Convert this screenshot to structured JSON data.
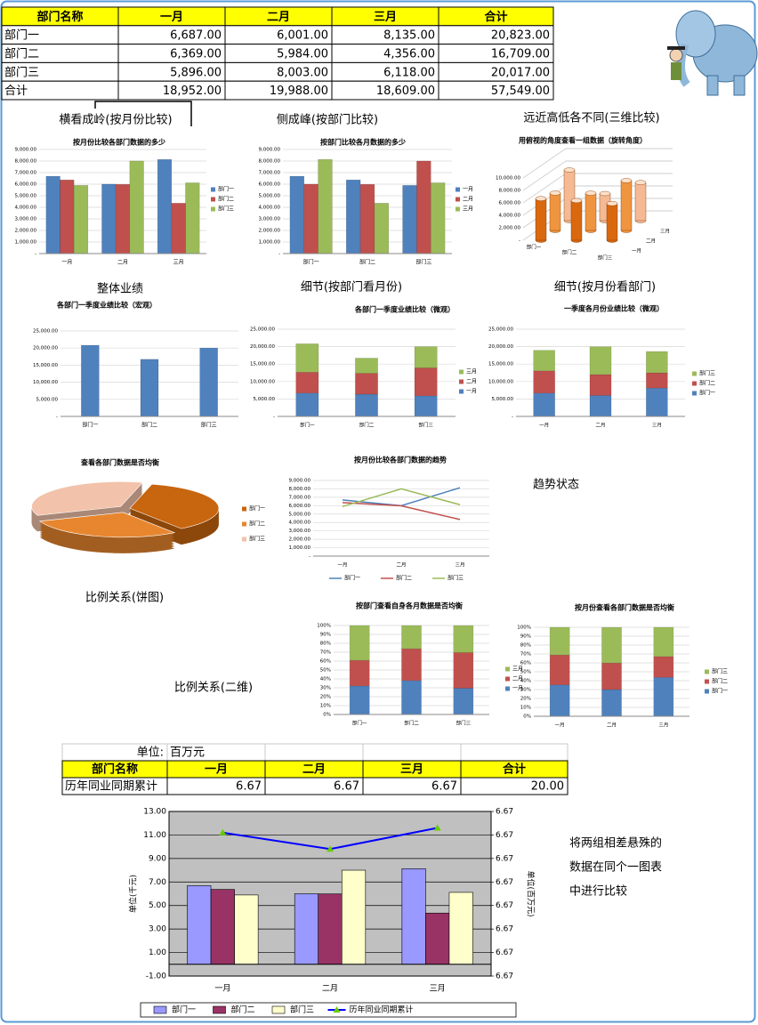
{
  "table": {
    "header": [
      "部门名称",
      "一月",
      "二月",
      "三月",
      "合计"
    ],
    "rows": [
      [
        "部门一",
        "6,687.00",
        "6,001.00",
        "8,135.00",
        "20,823.00"
      ],
      [
        "部门二",
        "6,369.00",
        "5,984.00",
        "4,356.00",
        "16,709.00"
      ],
      [
        "部门三",
        "5,896.00",
        "8,003.00",
        "6,118.00",
        "20,017.00"
      ],
      [
        "合计",
        "18,952.00",
        "19,988.00",
        "18,609.00",
        "57,549.00"
      ]
    ]
  },
  "chart_data": [
    {
      "type": "bar",
      "heading": "横看成岭(按月份比较)",
      "title": "按月份比较各部门数据的多少",
      "categories": [
        "一月",
        "二月",
        "三月"
      ],
      "series": [
        {
          "name": "部门一",
          "color": "#4f81bd",
          "values": [
            6687,
            6001,
            8135
          ]
        },
        {
          "name": "部门二",
          "color": "#c0504d",
          "values": [
            6369,
            5984,
            4356
          ]
        },
        {
          "name": "部门三",
          "color": "#9bbb59",
          "values": [
            5896,
            8003,
            6118
          ]
        }
      ],
      "ylim": [
        0,
        9000
      ],
      "yticks": [
        {
          "value": 0,
          "label": "-"
        },
        {
          "value": 1000,
          "label": "1,000.00"
        },
        {
          "value": 2000,
          "label": "2,000.00"
        },
        {
          "value": 3000,
          "label": "3,000.00"
        },
        {
          "value": 4000,
          "label": "4,000.00"
        },
        {
          "value": 5000,
          "label": "5,000.00"
        },
        {
          "value": 6000,
          "label": "6,000.00"
        },
        {
          "value": 7000,
          "label": "7,000.00"
        },
        {
          "value": 8000,
          "label": "8,000.00"
        },
        {
          "value": 9000,
          "label": "9,000.00"
        }
      ],
      "grid": true,
      "legend": "right"
    },
    {
      "type": "bar",
      "heading": "侧成峰(按部门比较)",
      "title": "按部门比较各月数据的多少",
      "categories": [
        "部门一",
        "部门二",
        "部门三"
      ],
      "series": [
        {
          "name": "一月",
          "color": "#4f81bd",
          "values": [
            6687,
            6369,
            5896
          ]
        },
        {
          "name": "二月",
          "color": "#c0504d",
          "values": [
            6001,
            5984,
            8003
          ]
        },
        {
          "name": "三月",
          "color": "#9bbb59",
          "values": [
            8135,
            4356,
            6118
          ]
        }
      ],
      "ylim": [
        0,
        9000
      ],
      "yticks": [
        {
          "value": 0,
          "label": "-"
        },
        {
          "value": 1000,
          "label": "1,000.00"
        },
        {
          "value": 2000,
          "label": "2,000.00"
        },
        {
          "value": 3000,
          "label": "3,000.00"
        },
        {
          "value": 4000,
          "label": "4,000.00"
        },
        {
          "value": 5000,
          "label": "5,000.00"
        },
        {
          "value": 6000,
          "label": "6,000.00"
        },
        {
          "value": 7000,
          "label": "7,000.00"
        },
        {
          "value": 8000,
          "label": "8,000.00"
        },
        {
          "value": 9000,
          "label": "9,000.00"
        }
      ],
      "grid": true,
      "legend": "right"
    },
    {
      "type": "bar3d",
      "heading": "远近高低各不同(三维比较)",
      "title": "用俯视的角度查看一组数据（旋转角度）",
      "categories": [
        "部门一",
        "部门二",
        "部门三"
      ],
      "series": [
        {
          "name": "一月",
          "color": "#d9680f",
          "values": [
            6687,
            6369,
            5896
          ]
        },
        {
          "name": "二月",
          "color": "#f0953f",
          "values": [
            6001,
            5984,
            8003
          ]
        },
        {
          "name": "三月",
          "color": "#f5b994",
          "values": [
            8135,
            4356,
            6118
          ]
        }
      ],
      "ylim": [
        0,
        10000
      ],
      "yticks": [
        {
          "value": 0,
          "label": "-"
        },
        {
          "value": 2000,
          "label": "2,000.00"
        },
        {
          "value": 4000,
          "label": "4,000.00"
        },
        {
          "value": 6000,
          "label": "6,000.00"
        },
        {
          "value": 8000,
          "label": "8,000.00"
        },
        {
          "value": 10000,
          "label": "10,000.00"
        }
      ],
      "grid": true
    },
    {
      "type": "bar",
      "heading": "整体业绩",
      "title": "各部门一季度业绩比较（宏观）",
      "categories": [
        "部门一",
        "部门二",
        "部门三"
      ],
      "values": [
        20823,
        16709,
        20017
      ],
      "color": "#4f81bd",
      "ylim": [
        0,
        25000
      ],
      "yticks": [
        {
          "value": 0,
          "label": "-"
        },
        {
          "value": 5000,
          "label": "5,000.00"
        },
        {
          "value": 10000,
          "label": "10,000.00"
        },
        {
          "value": 15000,
          "label": "15,000.00"
        },
        {
          "value": 20000,
          "label": "20,000.00"
        },
        {
          "value": 25000,
          "label": "25,000.00"
        }
      ],
      "grid": true
    },
    {
      "type": "stacked",
      "heading": "细节(按部门看月份)",
      "title": "各部门一季度业绩比较（微观）",
      "categories": [
        "部门一",
        "部门二",
        "部门三"
      ],
      "series": [
        {
          "name": "一月",
          "color": "#4f81bd",
          "values": [
            6687,
            6369,
            5896
          ]
        },
        {
          "name": "二月",
          "color": "#c0504d",
          "values": [
            6001,
            5984,
            8003
          ]
        },
        {
          "name": "三月",
          "color": "#9bbb59",
          "values": [
            8135,
            4356,
            6118
          ]
        }
      ],
      "ylim": [
        0,
        25000
      ],
      "yticks": [
        {
          "value": 0,
          "label": "-"
        },
        {
          "value": 5000,
          "label": "5,000.00"
        },
        {
          "value": 10000,
          "label": "10,000.00"
        },
        {
          "value": 15000,
          "label": "15,000.00"
        },
        {
          "value": 20000,
          "label": "20,000.00"
        },
        {
          "value": 25000,
          "label": "25,000.00"
        }
      ],
      "grid": true,
      "legend": "right"
    },
    {
      "type": "stacked",
      "heading": "细节(按月份看部门)",
      "title": "一季度各月份业绩比较（微观）",
      "categories": [
        "一月",
        "二月",
        "三月"
      ],
      "series": [
        {
          "name": "部门一",
          "color": "#4f81bd",
          "values": [
            6687,
            6001,
            8135
          ]
        },
        {
          "name": "部门二",
          "color": "#c0504d",
          "values": [
            6369,
            5984,
            4356
          ]
        },
        {
          "name": "部门三",
          "color": "#9bbb59",
          "values": [
            5896,
            8003,
            6118
          ]
        }
      ],
      "ylim": [
        0,
        25000
      ],
      "yticks": [
        {
          "value": 0,
          "label": "-"
        },
        {
          "value": 5000,
          "label": "5,000.00"
        },
        {
          "value": 10000,
          "label": "10,000.00"
        },
        {
          "value": 15000,
          "label": "15,000.00"
        },
        {
          "value": 20000,
          "label": "20,000.00"
        },
        {
          "value": 25000,
          "label": "25,000.00"
        }
      ],
      "grid": true,
      "legend": "right"
    },
    {
      "type": "pie3d",
      "heading": "比例关系(饼图)",
      "title": "查看各部门数据是否均衡",
      "categories": [
        "部门一",
        "部门二",
        "部门三"
      ],
      "values": [
        20823,
        16709,
        20017
      ],
      "colors": [
        "#c8650f",
        "#e8862f",
        "#f2c2aa"
      ],
      "legend": "right"
    },
    {
      "type": "line",
      "heading": "趋势状态",
      "title": "按月份比较各部门数据的趋势",
      "categories": [
        "一月",
        "二月",
        "三月"
      ],
      "series": [
        {
          "name": "部门一",
          "color": "#4f81bd",
          "values": [
            6687,
            6001,
            8135
          ]
        },
        {
          "name": "部门二",
          "color": "#c0504d",
          "values": [
            6369,
            5984,
            4356
          ]
        },
        {
          "name": "部门三",
          "color": "#9bbb59",
          "values": [
            5896,
            8003,
            6118
          ]
        }
      ],
      "ylim": [
        0,
        9000
      ],
      "yticks": [
        {
          "value": 0,
          "label": "-"
        },
        {
          "value": 1000,
          "label": "1,000.00"
        },
        {
          "value": 2000,
          "label": "2,000.00"
        },
        {
          "value": 3000,
          "label": "3,000.00"
        },
        {
          "value": 4000,
          "label": "4,000.00"
        },
        {
          "value": 5000,
          "label": "5,000.00"
        },
        {
          "value": 6000,
          "label": "6,000.00"
        },
        {
          "value": 7000,
          "label": "7,000.00"
        },
        {
          "value": 8000,
          "label": "8,000.00"
        },
        {
          "value": 9000,
          "label": "9,000.00"
        }
      ],
      "grid": true,
      "legend": "bottom"
    },
    {
      "type": "stacked",
      "heading": "比例关系(二维)",
      "title": "按部门查看自身各月数据是否均衡",
      "categories": [
        "部门一",
        "部门二",
        "部门三"
      ],
      "series": [
        {
          "name": "一月",
          "color": "#4f81bd",
          "values": [
            32.1,
            38.1,
            29.5
          ]
        },
        {
          "name": "二月",
          "color": "#c0504d",
          "values": [
            28.8,
            35.8,
            40.0
          ]
        },
        {
          "name": "三月",
          "color": "#9bbb59",
          "values": [
            39.1,
            26.1,
            30.5
          ]
        }
      ],
      "ylim": [
        0,
        100
      ],
      "yticks": [
        {
          "value": 0,
          "label": "0%"
        },
        {
          "value": 10,
          "label": "10%"
        },
        {
          "value": 20,
          "label": "20%"
        },
        {
          "value": 30,
          "label": "30%"
        },
        {
          "value": 40,
          "label": "40%"
        },
        {
          "value": 50,
          "label": "50%"
        },
        {
          "value": 60,
          "label": "60%"
        },
        {
          "value": 70,
          "label": "70%"
        },
        {
          "value": 80,
          "label": "80%"
        },
        {
          "value": 90,
          "label": "90%"
        },
        {
          "value": 100,
          "label": "100%"
        }
      ],
      "grid": true,
      "legend": "right"
    },
    {
      "type": "stacked",
      "title": "按月份查看各部门数据是否均衡",
      "categories": [
        "一月",
        "二月",
        "三月"
      ],
      "series": [
        {
          "name": "部门一",
          "color": "#4f81bd",
          "values": [
            35.3,
            30.0,
            43.7
          ]
        },
        {
          "name": "部门二",
          "color": "#c0504d",
          "values": [
            33.6,
            29.9,
            23.4
          ]
        },
        {
          "name": "部门三",
          "color": "#9bbb59",
          "values": [
            31.1,
            40.0,
            32.9
          ]
        }
      ],
      "ylim": [
        0,
        100
      ],
      "yticks": [
        {
          "value": 0,
          "label": "0%"
        },
        {
          "value": 10,
          "label": "10%"
        },
        {
          "value": 20,
          "label": "20%"
        },
        {
          "value": 30,
          "label": "30%"
        },
        {
          "value": 40,
          "label": "40%"
        },
        {
          "value": 50,
          "label": "50%"
        },
        {
          "value": 60,
          "label": "60%"
        },
        {
          "value": 70,
          "label": "70%"
        },
        {
          "value": 80,
          "label": "80%"
        },
        {
          "value": 90,
          "label": "90%"
        },
        {
          "value": 100,
          "label": "100%"
        }
      ],
      "grid": true,
      "legend": "right"
    },
    {
      "type": "combo",
      "annotation": [
        "将两组相差悬殊的",
        "数据在同个一图表",
        "中进行比较"
      ],
      "categories": [
        "一月",
        "二月",
        "三月"
      ],
      "ylabel": "单位(千元)",
      "y2label": "单位(百万元)",
      "series": [
        {
          "name": "部门一",
          "color": "#9999ff",
          "values": [
            6.687,
            6.001,
            8.135
          ]
        },
        {
          "name": "部门二",
          "color": "#993366",
          "values": [
            6.369,
            5.984,
            4.356
          ]
        },
        {
          "name": "部门三",
          "color": "#ffffcc",
          "values": [
            5.896,
            8.003,
            6.118
          ]
        },
        {
          "name": "历年同业同期累计",
          "color": "#0000ff",
          "marker_color": "#66cc00",
          "axis": "y2",
          "values": [
            6.6711,
            6.6704,
            6.6713
          ]
        }
      ],
      "ylim": [
        -1,
        13
      ],
      "yticks": [
        {
          "value": -1,
          "label": "-1.00"
        },
        {
          "value": 1,
          "label": "1.00"
        },
        {
          "value": 3,
          "label": "3.00"
        },
        {
          "value": 5,
          "label": "5.00"
        },
        {
          "value": 7,
          "label": "7.00"
        },
        {
          "value": 9,
          "label": "9.00"
        },
        {
          "value": 11,
          "label": "11.00"
        },
        {
          "value": 13,
          "label": "13.00"
        }
      ],
      "y2lim": [
        6.665,
        6.672
      ],
      "y2ticks": [
        {
          "value": 6.665,
          "label": "6.67"
        },
        {
          "value": 6.666,
          "label": "6.67"
        },
        {
          "value": 6.667,
          "label": "6.67"
        },
        {
          "value": 6.668,
          "label": "6.67"
        },
        {
          "value": 6.669,
          "label": "6.67"
        },
        {
          "value": 6.67,
          "label": "6.67"
        },
        {
          "value": 6.671,
          "label": "6.67"
        },
        {
          "value": 6.672,
          "label": "6.67"
        }
      ],
      "grid": true,
      "legend": "bottom"
    }
  ],
  "table2": {
    "unit_label": "单位:",
    "unit": "百万元",
    "header": [
      "部门名称",
      "一月",
      "二月",
      "三月",
      "合计"
    ],
    "row": [
      "历年同业同期累计",
      "6.67",
      "6.67",
      "6.67",
      "20.00"
    ]
  }
}
